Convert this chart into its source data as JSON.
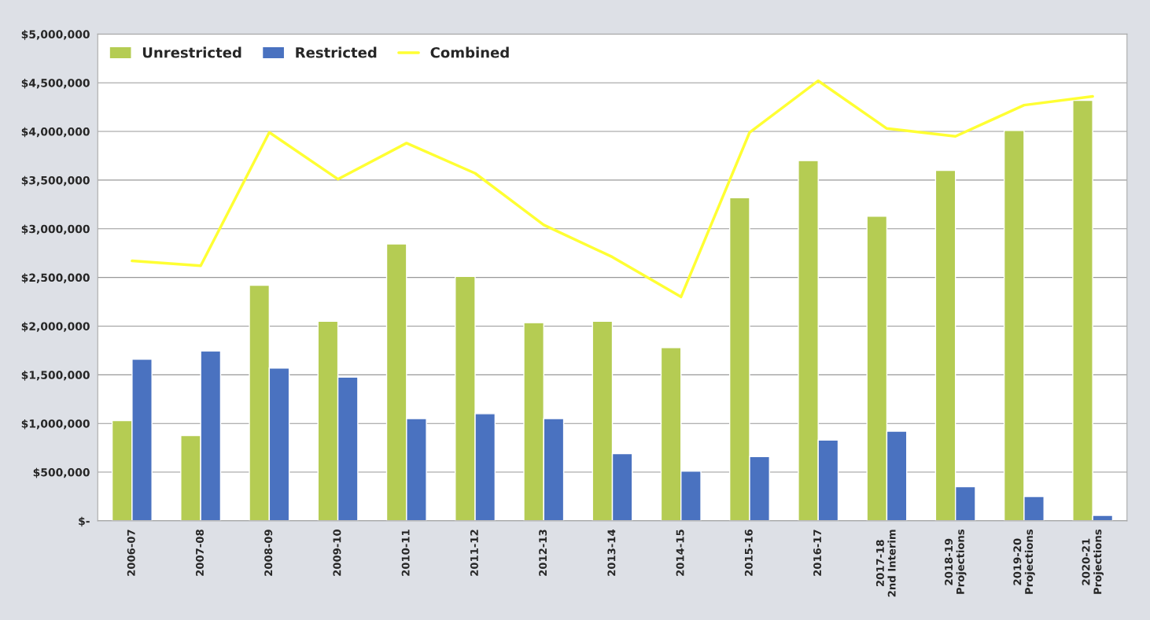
{
  "chart_data": {
    "type": "bar",
    "categories": [
      "2006-07",
      "2007-08",
      "2008-09",
      "2009-10",
      "2010-11",
      "2011-12",
      "2012-13",
      "2013-14",
      "2014-15",
      "2015-16",
      "2016-17",
      "2017-18\n2nd Interim",
      "2018-19\nProjections",
      "2019-20\nProjections",
      "2020-21\nProjections"
    ],
    "series": [
      {
        "name": "Unrestricted",
        "color": "#b5cc53",
        "values": [
          1030000,
          875000,
          2420000,
          2050000,
          2845000,
          2510000,
          2035000,
          2050000,
          1780000,
          3320000,
          3700000,
          3130000,
          3600000,
          4010000,
          4320000
        ]
      },
      {
        "name": "Restricted",
        "color": "#4a72c0",
        "values": [
          1660000,
          1745000,
          1570000,
          1477000,
          1050000,
          1100000,
          1050000,
          690000,
          510000,
          660000,
          830000,
          920000,
          350000,
          250000,
          55000
        ]
      },
      {
        "name": "Combined",
        "type": "line",
        "color": "#ffff33",
        "values": [
          2670000,
          2620000,
          3990000,
          3510000,
          3880000,
          3570000,
          3040000,
          2710000,
          2300000,
          3990000,
          4520000,
          4030000,
          3950000,
          4270000,
          4360000
        ]
      }
    ],
    "ylim": [
      0,
      5000000
    ],
    "yticks": [
      {
        "value": 0,
        "label": "$-"
      },
      {
        "value": 500000,
        "label": "$500,000"
      },
      {
        "value": 1000000,
        "label": "$1,000,000"
      },
      {
        "value": 1500000,
        "label": "$1,500,000"
      },
      {
        "value": 2000000,
        "label": "$2,000,000"
      },
      {
        "value": 2500000,
        "label": "$2,500,000"
      },
      {
        "value": 3000000,
        "label": "$3,000,000"
      },
      {
        "value": 3500000,
        "label": "$3,500,000"
      },
      {
        "value": 4000000,
        "label": "$4,000,000"
      },
      {
        "value": 4500000,
        "label": "$4,500,000"
      },
      {
        "value": 5000000,
        "label": "$5,000,000"
      }
    ],
    "grid": "y",
    "legend": "top left"
  }
}
